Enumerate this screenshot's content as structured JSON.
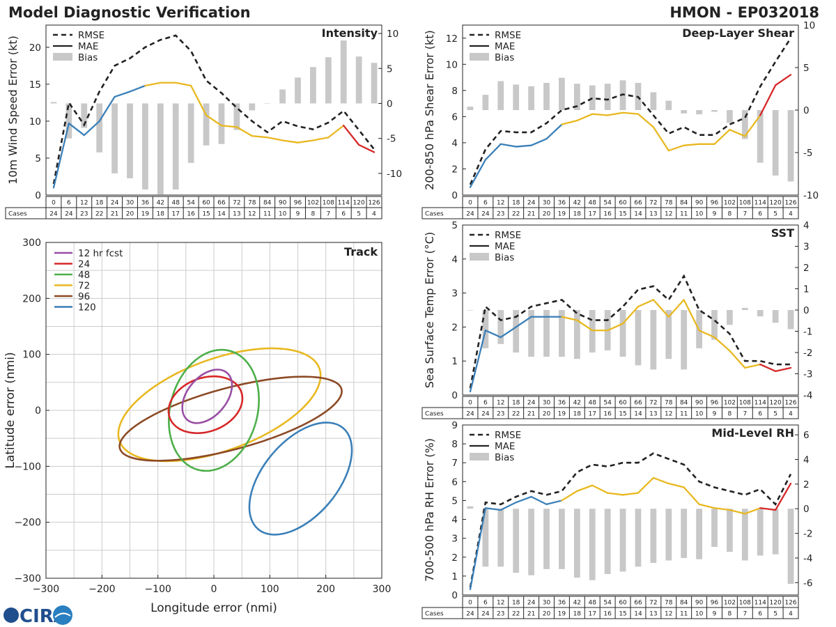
{
  "header": {
    "title": "Model Diagnostic Verification",
    "storm": "HMON - EP032018",
    "logo_text": "CIRA"
  },
  "colors": {
    "rmse": "#222222",
    "bias": "#c8c8c8",
    "seg_blue": "#3a7fb8",
    "seg_yellow": "#e8b820",
    "seg_red": "#d62728",
    "track_12": "#984ea3",
    "track_24": "#d62728",
    "track_48": "#4daf4a",
    "track_72": "#e8b820",
    "track_96": "#8c4a25",
    "track_120": "#3a7fb8"
  },
  "legend": {
    "rmse": "RMSE",
    "mae": "MAE",
    "bias": "Bias"
  },
  "table": {
    "cases_label": "Cases",
    "hours": [
      0,
      6,
      12,
      18,
      24,
      30,
      36,
      42,
      48,
      54,
      60,
      66,
      72,
      78,
      84,
      90,
      96,
      102,
      108,
      114,
      120,
      126
    ],
    "cases": [
      24,
      24,
      23,
      22,
      21,
      20,
      19,
      18,
      17,
      16,
      15,
      14,
      13,
      12,
      11,
      10,
      9,
      8,
      7,
      6,
      5,
      4
    ]
  },
  "chart_data": [
    {
      "type": "bar",
      "name": "intensity",
      "title": "Intensity",
      "ylabel": "10m Wind Speed Error (kt)",
      "ylim": [
        0,
        23
      ],
      "yticks": [
        0,
        5,
        10,
        15,
        20
      ],
      "y2lim": [
        -13.1,
        11.2
      ],
      "y2ticks": [
        -10,
        -5,
        0,
        5,
        10
      ],
      "x": [
        0,
        6,
        12,
        18,
        24,
        30,
        36,
        42,
        48,
        54,
        60,
        66,
        72,
        78,
        84,
        90,
        96,
        102,
        108,
        114,
        120,
        126
      ],
      "rmse": [
        1.5,
        12.5,
        9.5,
        14.0,
        17.5,
        18.5,
        20.0,
        21.0,
        21.6,
        19.5,
        15.5,
        13.8,
        11.8,
        10.0,
        8.5,
        10.0,
        9.3,
        8.9,
        9.8,
        11.4,
        8.8,
        6.2
      ],
      "mae": [
        1.0,
        9.7,
        8.1,
        10.0,
        13.3,
        14.0,
        14.8,
        15.2,
        15.2,
        14.8,
        10.8,
        9.4,
        9.2,
        8.0,
        7.8,
        7.4,
        7.1,
        7.4,
        7.8,
        9.4,
        6.8,
        5.8
      ],
      "bias": [
        0.2,
        -5.0,
        -3.5,
        -7.0,
        -10.0,
        -10.7,
        -12.3,
        -13.0,
        -12.3,
        -8.5,
        -6.0,
        -5.8,
        -3.8,
        -1.0,
        0,
        2.0,
        3.7,
        5.2,
        6.6,
        9.0,
        6.7,
        5.8
      ]
    },
    {
      "type": "bar",
      "name": "shear",
      "title": "Deep-Layer Shear",
      "ylabel": "200-850 hPa Shear Error (kt)",
      "ylim": [
        0,
        13
      ],
      "yticks": [
        0,
        2,
        4,
        6,
        8,
        10,
        12
      ],
      "y2lim": [
        -10,
        10
      ],
      "y2ticks": [
        -10,
        -5,
        0,
        5,
        10
      ],
      "x": [
        0,
        6,
        12,
        18,
        24,
        30,
        36,
        42,
        48,
        54,
        60,
        66,
        72,
        78,
        84,
        90,
        96,
        102,
        108,
        114,
        120,
        126
      ],
      "rmse": [
        0.8,
        3.5,
        4.9,
        4.8,
        4.8,
        5.5,
        6.5,
        6.8,
        7.4,
        7.3,
        7.7,
        7.5,
        6.1,
        4.7,
        5.2,
        4.6,
        4.6,
        5.4,
        5.9,
        8.3,
        10.2,
        12.0
      ],
      "mae": [
        0.6,
        2.7,
        3.9,
        3.7,
        3.8,
        4.3,
        5.4,
        5.7,
        6.2,
        6.1,
        6.3,
        6.2,
        5.2,
        3.4,
        3.8,
        3.9,
        3.9,
        5.0,
        4.5,
        6.1,
        8.4,
        9.2
      ],
      "bias": [
        0.4,
        1.8,
        3.4,
        3.0,
        2.8,
        3.2,
        3.8,
        3.1,
        2.9,
        3.1,
        3.5,
        3.2,
        2.1,
        1.1,
        -0.4,
        -0.5,
        -0.2,
        -1.5,
        -3.4,
        -6.2,
        -7.7,
        -8.4
      ]
    },
    {
      "type": "bar",
      "name": "sst",
      "title": "SST",
      "ylabel": "Sea Surface Temp Error (°C)",
      "ylim": [
        0,
        5
      ],
      "yticks": [
        0,
        1,
        2,
        3,
        4,
        5
      ],
      "y2lim": [
        -4,
        4
      ],
      "y2ticks": [
        -4,
        -3,
        -2,
        -1,
        0,
        1,
        2,
        3,
        4
      ],
      "x": [
        0,
        6,
        12,
        18,
        24,
        30,
        36,
        42,
        48,
        54,
        60,
        66,
        72,
        78,
        84,
        90,
        96,
        102,
        108,
        114,
        120,
        126
      ],
      "rmse": [
        0.2,
        2.6,
        2.2,
        2.3,
        2.6,
        2.7,
        2.8,
        2.4,
        2.2,
        2.2,
        2.6,
        3.1,
        3.2,
        2.8,
        3.5,
        2.5,
        2.2,
        1.8,
        1.0,
        1.0,
        0.9,
        0.9
      ],
      "mae": [
        0.1,
        1.9,
        1.7,
        2.0,
        2.3,
        2.3,
        2.3,
        2.2,
        1.9,
        1.9,
        2.1,
        2.6,
        2.8,
        2.3,
        2.8,
        1.9,
        1.7,
        1.3,
        0.8,
        0.9,
        0.7,
        0.8
      ],
      "bias": [
        0.0,
        -1.8,
        -1.6,
        -2.0,
        -2.2,
        -2.2,
        -2.2,
        -2.3,
        -2.0,
        -1.9,
        -2.2,
        -2.6,
        -2.8,
        -2.3,
        -2.8,
        -1.8,
        -1.4,
        -0.7,
        0.1,
        -0.3,
        -0.6,
        -0.9
      ]
    },
    {
      "type": "bar",
      "name": "rh",
      "title": "Mid-Level RH",
      "ylabel": "700-500 hPa RH Error (%)",
      "ylim": [
        0,
        9
      ],
      "yticks": [
        0,
        1,
        2,
        3,
        4,
        5,
        6,
        7,
        8,
        9
      ],
      "y2lim": [
        -7,
        6.8
      ],
      "y2ticks": [
        -6,
        -4,
        -2,
        0,
        2,
        4,
        6
      ],
      "x": [
        0,
        6,
        12,
        18,
        24,
        30,
        36,
        42,
        48,
        54,
        60,
        66,
        72,
        78,
        84,
        90,
        96,
        102,
        108,
        114,
        120,
        126
      ],
      "rmse": [
        0.4,
        4.9,
        4.8,
        5.2,
        5.5,
        5.3,
        5.5,
        6.5,
        6.9,
        6.8,
        7.0,
        7.0,
        7.5,
        7.2,
        6.9,
        6.0,
        5.7,
        5.5,
        5.3,
        5.6,
        4.8,
        6.4
      ],
      "mae": [
        0.3,
        4.6,
        4.5,
        4.9,
        5.2,
        4.8,
        5.0,
        5.5,
        5.8,
        5.4,
        5.3,
        5.4,
        6.2,
        5.9,
        5.7,
        4.8,
        4.6,
        4.5,
        4.3,
        4.6,
        4.5,
        5.9
      ],
      "bias": [
        0.2,
        -4.7,
        -4.7,
        -5.2,
        -5.4,
        -4.9,
        -4.9,
        -5.6,
        -5.8,
        -5.3,
        -5.1,
        -4.7,
        -4.4,
        -4.2,
        -4.0,
        -4.1,
        -3.1,
        -3.5,
        -4.2,
        -3.8,
        -3.7,
        -6.1
      ]
    },
    {
      "type": "scatter",
      "name": "track",
      "title": "Track",
      "xlabel": "Longitude error (nmi)",
      "ylabel": "Latitude error (nmi)",
      "xlim": [
        -300,
        300
      ],
      "ylim": [
        -300,
        300
      ],
      "xticks": [
        -300,
        -200,
        -100,
        0,
        100,
        200,
        300
      ],
      "yticks": [
        -300,
        -200,
        -100,
        0,
        100,
        200,
        300
      ],
      "series": [
        {
          "name": "12 hr fcst",
          "key": "12",
          "cx": -12,
          "cy": 25,
          "rx": 55,
          "ry": 35,
          "angle": -50
        },
        {
          "name": "24",
          "key": "24",
          "cx": -15,
          "cy": 10,
          "rx": 68,
          "ry": 48,
          "angle": -20
        },
        {
          "name": "48",
          "key": "48",
          "cx": 0,
          "cy": 0,
          "rx": 110,
          "ry": 78,
          "angle": -75
        },
        {
          "name": "72",
          "key": "72",
          "cx": 10,
          "cy": 10,
          "rx": 190,
          "ry": 82,
          "angle": -20
        },
        {
          "name": "96",
          "key": "96",
          "cx": 30,
          "cy": -15,
          "rx": 205,
          "ry": 55,
          "angle": -15
        },
        {
          "name": "120",
          "key": "120",
          "cx": 155,
          "cy": -122,
          "rx": 118,
          "ry": 67,
          "angle": -50
        }
      ]
    }
  ]
}
